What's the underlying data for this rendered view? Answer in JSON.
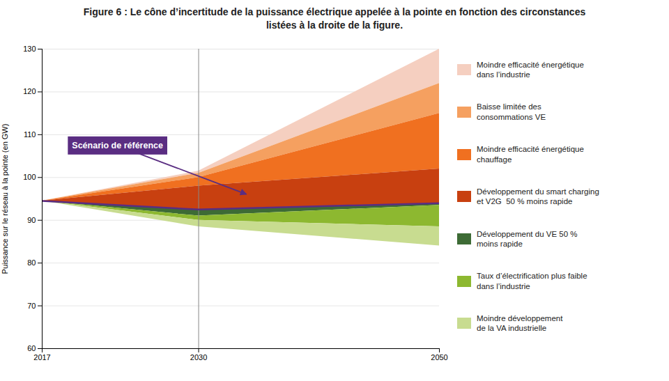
{
  "chart_data": {
    "type": "area",
    "title": "Figure 6 : Le cône d’incertitude de la puissance électrique appelée à la pointe en fonction des circonstances\nlistées à la droite de la figure.",
    "ylabel": "Puissance sur le réseau à la pointe (en GW)",
    "x": [
      2017,
      2030,
      2050
    ],
    "xlim": [
      2017,
      2050
    ],
    "xticks": [
      2017,
      2030,
      2050
    ],
    "ylim": [
      60,
      130
    ],
    "yticks": [
      60,
      70,
      80,
      90,
      100,
      110,
      120,
      130
    ],
    "grid": true,
    "legend": "right",
    "reference": {
      "values": [
        94.5,
        92.5,
        94.0
      ],
      "color": "#5a2d82"
    },
    "upper_bands": [
      {
        "name": "Moindre efficacité énergétique\ndans l’industrie",
        "color": "#f5cfc0",
        "values": [
          94.5,
          101.5,
          130.0
        ]
      },
      {
        "name": "Baisse limitée des\nconsommations VE",
        "color": "#f5a060",
        "values": [
          94.5,
          101.0,
          122.0
        ]
      },
      {
        "name": "Moindre efficacité énergétique\nchauffage",
        "color": "#f07020",
        "values": [
          94.5,
          100.0,
          115.0
        ]
      },
      {
        "name": "Développement du smart charging\net V2G  50 % moins rapide",
        "color": "#c84010",
        "values": [
          94.5,
          98.0,
          102.0
        ]
      }
    ],
    "lower_bands": [
      {
        "name": "Développement du VE 50 %\nmoins rapide",
        "color": "#3d6b35",
        "values": [
          94.5,
          91.0,
          93.5
        ]
      },
      {
        "name": "Taux d’électrification plus faible\ndans l’industrie",
        "color": "#8db830",
        "values": [
          94.5,
          90.0,
          88.5
        ]
      },
      {
        "name": "Moindre développement\nde la VA industrielle",
        "color": "#c8dc90",
        "values": [
          94.5,
          88.5,
          84.0
        ]
      }
    ],
    "vline": 2030,
    "annotations": [
      {
        "text": "Scénario de référence",
        "x": 2034,
        "y": 96.0
      }
    ]
  }
}
